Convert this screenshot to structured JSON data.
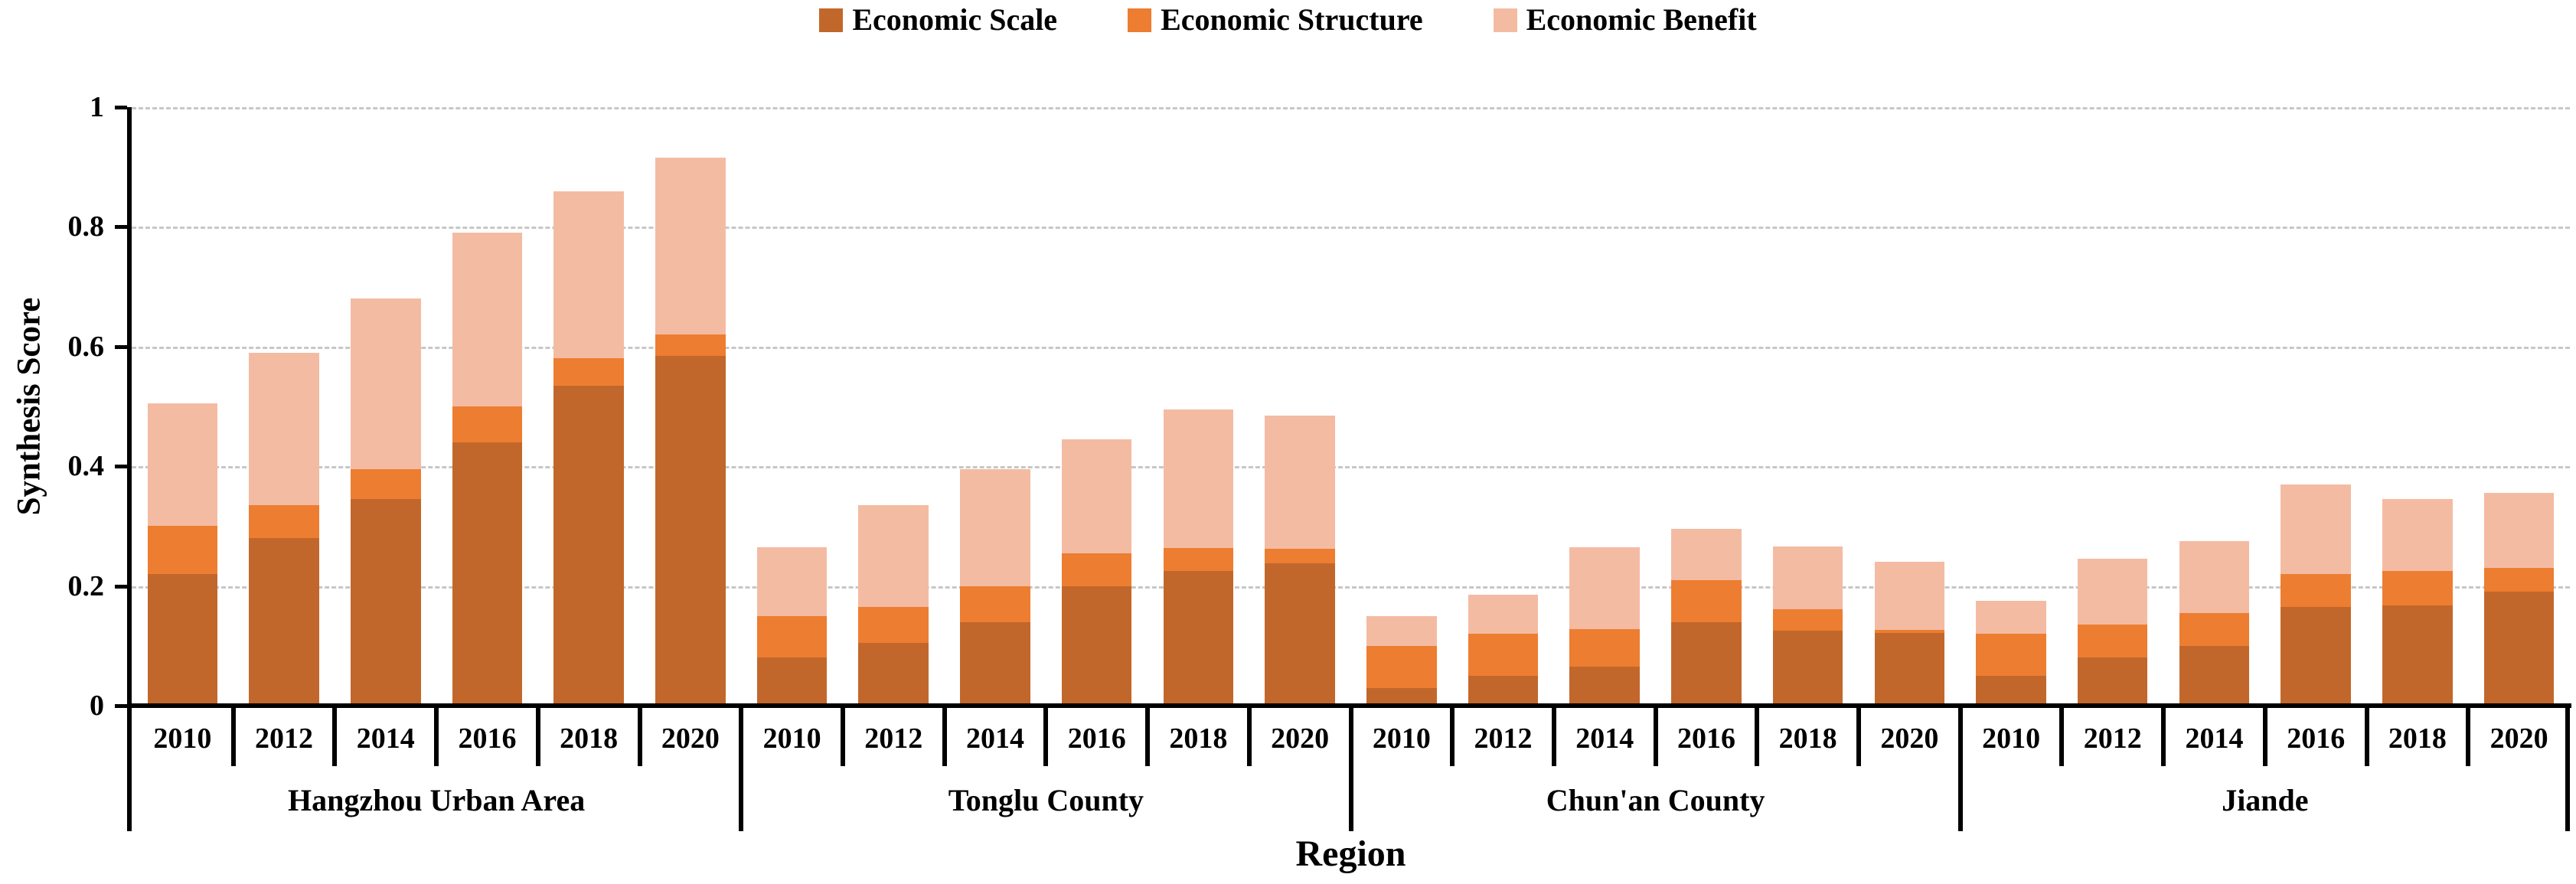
{
  "legend": {
    "items": [
      {
        "label": "Economic Scale",
        "color": "#C2672B"
      },
      {
        "label": "Economic Structure",
        "color": "#ED7D31"
      },
      {
        "label": "Economic Benefit",
        "color": "#F4BBA3"
      }
    ]
  },
  "y_axis": {
    "title": "Synthesis Score",
    "tick_labels": [
      "1",
      "0.8",
      "0.6",
      "0.4",
      "0.2",
      "0"
    ],
    "tick_values": [
      1,
      0.8,
      0.6,
      0.4,
      0.2,
      0
    ]
  },
  "x_axis": {
    "title": "Region"
  },
  "colors": {
    "axis": "#000000",
    "gridline": "#c7c7c7",
    "background": "#ffffff"
  },
  "chart_data": {
    "type": "bar",
    "stacked": true,
    "title": "",
    "xlabel": "Region",
    "ylabel": "Synthesis Score",
    "ylim": [
      0,
      1
    ],
    "grid": true,
    "gridline_step": 0.2,
    "legend_position": "top-center",
    "years": [
      "2010",
      "2012",
      "2014",
      "2016",
      "2018",
      "2020"
    ],
    "series_names": [
      "Economic Scale",
      "Economic Structure",
      "Economic Benefit"
    ],
    "series_colors": [
      "#C2672B",
      "#ED7D31",
      "#F4BBA3"
    ],
    "groups": [
      {
        "region": "Hangzhou Urban Area",
        "series": [
          {
            "name": "Economic Scale",
            "values": [
              0.22,
              0.28,
              0.345,
              0.44,
              0.535,
              0.585
            ]
          },
          {
            "name": "Economic Structure",
            "values": [
              0.08,
              0.055,
              0.05,
              0.06,
              0.045,
              0.035
            ]
          },
          {
            "name": "Economic Benefit",
            "values": [
              0.205,
              0.255,
              0.285,
              0.29,
              0.28,
              0.295
            ]
          }
        ],
        "totals": [
          0.505,
          0.59,
          0.68,
          0.79,
          0.86,
          0.915
        ]
      },
      {
        "region": "Tonglu County",
        "series": [
          {
            "name": "Economic Scale",
            "values": [
              0.08,
              0.105,
              0.14,
              0.2,
              0.225,
              0.238
            ]
          },
          {
            "name": "Economic Structure",
            "values": [
              0.07,
              0.06,
              0.06,
              0.055,
              0.038,
              0.024
            ]
          },
          {
            "name": "Economic Benefit",
            "values": [
              0.115,
              0.17,
              0.195,
              0.19,
              0.232,
              0.223
            ]
          }
        ],
        "totals": [
          0.265,
          0.335,
          0.395,
          0.445,
          0.495,
          0.485
        ]
      },
      {
        "region": "Chun'an County",
        "series": [
          {
            "name": "Economic Scale",
            "values": [
              0.03,
              0.05,
              0.065,
              0.14,
              0.125,
              0.122
            ]
          },
          {
            "name": "Economic Structure",
            "values": [
              0.07,
              0.07,
              0.063,
              0.07,
              0.036,
              0.005
            ]
          },
          {
            "name": "Economic Benefit",
            "values": [
              0.05,
              0.065,
              0.137,
              0.085,
              0.105,
              0.113
            ]
          }
        ],
        "totals": [
          0.15,
          0.185,
          0.265,
          0.295,
          0.266,
          0.24
        ]
      },
      {
        "region": "Jiande",
        "series": [
          {
            "name": "Economic Scale",
            "values": [
              0.05,
              0.08,
              0.1,
              0.165,
              0.168,
              0.19
            ]
          },
          {
            "name": "Economic Structure",
            "values": [
              0.07,
              0.055,
              0.055,
              0.055,
              0.057,
              0.04
            ]
          },
          {
            "name": "Economic Benefit",
            "values": [
              0.055,
              0.11,
              0.12,
              0.15,
              0.12,
              0.125
            ]
          }
        ],
        "totals": [
          0.175,
          0.245,
          0.275,
          0.37,
          0.345,
          0.355
        ]
      }
    ]
  }
}
